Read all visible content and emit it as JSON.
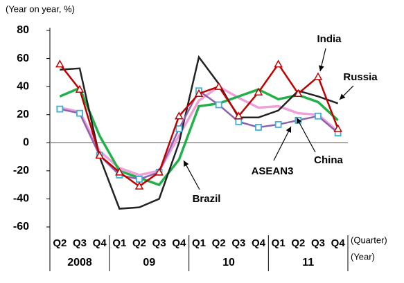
{
  "chart_data": {
    "type": "line",
    "y_axis_label": "(Year on year, %)",
    "x_axis_label": "(Quarter)",
    "year_axis_label": "(Year)",
    "categories": [
      "Q2",
      "Q3",
      "Q4",
      "Q1",
      "Q2",
      "Q3",
      "Q4",
      "Q1",
      "Q2",
      "Q3",
      "Q4",
      "Q1",
      "Q2",
      "Q3",
      "Q4"
    ],
    "years": [
      "2008",
      null,
      null,
      "09",
      null,
      null,
      null,
      "10",
      null,
      null,
      null,
      "11",
      null,
      null,
      null
    ],
    "ylim": [
      -60,
      80
    ],
    "yticks": [
      -60,
      -40,
      -20,
      0,
      20,
      40,
      60,
      80
    ],
    "series": [
      {
        "name": "China",
        "color": "#f0a0d8",
        "marker": "none",
        "values": [
          25,
          22,
          -6,
          -18,
          -23,
          -20,
          5,
          30,
          40,
          32,
          25,
          26,
          21,
          20,
          8
        ]
      },
      {
        "name": "Brazil",
        "color": "#22b04a",
        "marker": "none",
        "values": [
          33,
          39,
          5,
          -20,
          -25,
          -30,
          -12,
          26,
          28,
          33,
          38,
          31,
          34,
          29,
          16
        ]
      },
      {
        "name": "Russia",
        "color": "#222222",
        "marker": "none",
        "values": [
          52,
          53,
          -10,
          -47,
          -46,
          -40,
          0,
          61,
          42,
          18,
          18,
          23,
          37,
          33,
          28
        ]
      },
      {
        "name": "ASEAN3",
        "color": "#9060b0",
        "marker": "square",
        "values": [
          24,
          21,
          -9,
          -23,
          -26,
          -21,
          10,
          37,
          27,
          15,
          11,
          13,
          16,
          19,
          7
        ]
      },
      {
        "name": "India",
        "color": "#c00000",
        "marker": "triangle",
        "values": [
          56,
          38,
          -9,
          -21,
          -31,
          -21,
          19,
          35,
          40,
          19,
          36,
          56,
          35,
          47,
          10
        ]
      }
    ]
  }
}
